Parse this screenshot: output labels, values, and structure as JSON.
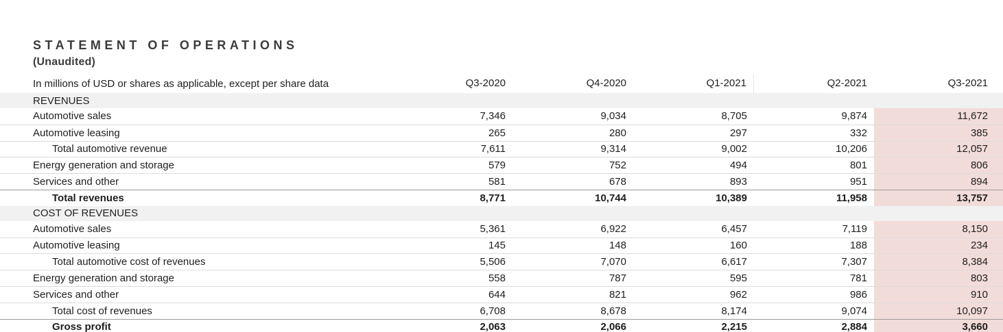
{
  "header": {
    "title": "STATEMENT OF OPERATIONS",
    "subtitle": "(Unaudited)"
  },
  "table": {
    "caption": "In millions of USD or shares as applicable, except per share data",
    "columns": [
      "Q3-2020",
      "Q4-2020",
      "Q1-2021",
      "Q2-2021",
      "Q3-2021"
    ],
    "highlighted_column": "Q3-2021",
    "sections": [
      {
        "name": "REVENUES",
        "rows": [
          {
            "label": "Automotive sales",
            "indent": false,
            "bold": false,
            "top_border": "light",
            "values": [
              "7,346",
              "9,034",
              "8,705",
              "9,874",
              "11,672"
            ]
          },
          {
            "label": "Automotive leasing",
            "indent": false,
            "bold": false,
            "top_border": "light",
            "values": [
              "265",
              "280",
              "297",
              "332",
              "385"
            ]
          },
          {
            "label": "Total automotive revenue",
            "indent": true,
            "bold": false,
            "top_border": "light",
            "values": [
              "7,611",
              "9,314",
              "9,002",
              "10,206",
              "12,057"
            ]
          },
          {
            "label": "Energy generation and storage",
            "indent": false,
            "bold": false,
            "top_border": "light",
            "values": [
              "579",
              "752",
              "494",
              "801",
              "806"
            ]
          },
          {
            "label": "Services and other",
            "indent": false,
            "bold": false,
            "top_border": "light",
            "values": [
              "581",
              "678",
              "893",
              "951",
              "894"
            ]
          },
          {
            "label": "Total revenues",
            "indent": true,
            "bold": true,
            "top_border": "dark",
            "values": [
              "8,771",
              "10,744",
              "10,389",
              "11,958",
              "13,757"
            ]
          }
        ]
      },
      {
        "name": "COST OF REVENUES",
        "rows": [
          {
            "label": "Automotive sales",
            "indent": false,
            "bold": false,
            "top_border": "light",
            "values": [
              "5,361",
              "6,922",
              "6,457",
              "7,119",
              "8,150"
            ]
          },
          {
            "label": "Automotive leasing",
            "indent": false,
            "bold": false,
            "top_border": "light",
            "values": [
              "145",
              "148",
              "160",
              "188",
              "234"
            ]
          },
          {
            "label": "Total automotive cost of revenues",
            "indent": true,
            "bold": false,
            "top_border": "light",
            "values": [
              "5,506",
              "7,070",
              "6,617",
              "7,307",
              "8,384"
            ]
          },
          {
            "label": "Energy generation and storage",
            "indent": false,
            "bold": false,
            "top_border": "light",
            "values": [
              "558",
              "787",
              "595",
              "781",
              "803"
            ]
          },
          {
            "label": "Services and other",
            "indent": false,
            "bold": false,
            "top_border": "light",
            "values": [
              "644",
              "821",
              "962",
              "986",
              "910"
            ]
          },
          {
            "label": "Total cost of revenues",
            "indent": true,
            "bold": false,
            "top_border": "light",
            "values": [
              "6,708",
              "8,678",
              "8,174",
              "9,074",
              "10,097"
            ]
          },
          {
            "label": "Gross profit",
            "indent": true,
            "bold": true,
            "top_border": "dark",
            "values": [
              "2,063",
              "2,066",
              "2,215",
              "2,884",
              "3,660"
            ]
          }
        ]
      }
    ]
  },
  "colors": {
    "highlight_pink": "#f2dcda",
    "section_band_gray": "#f1f1f1",
    "row_separator": "#dcdcdc",
    "total_row_border": "#9a9a9a",
    "text": "#1e1e1e",
    "title_text": "#3b3b3b"
  }
}
